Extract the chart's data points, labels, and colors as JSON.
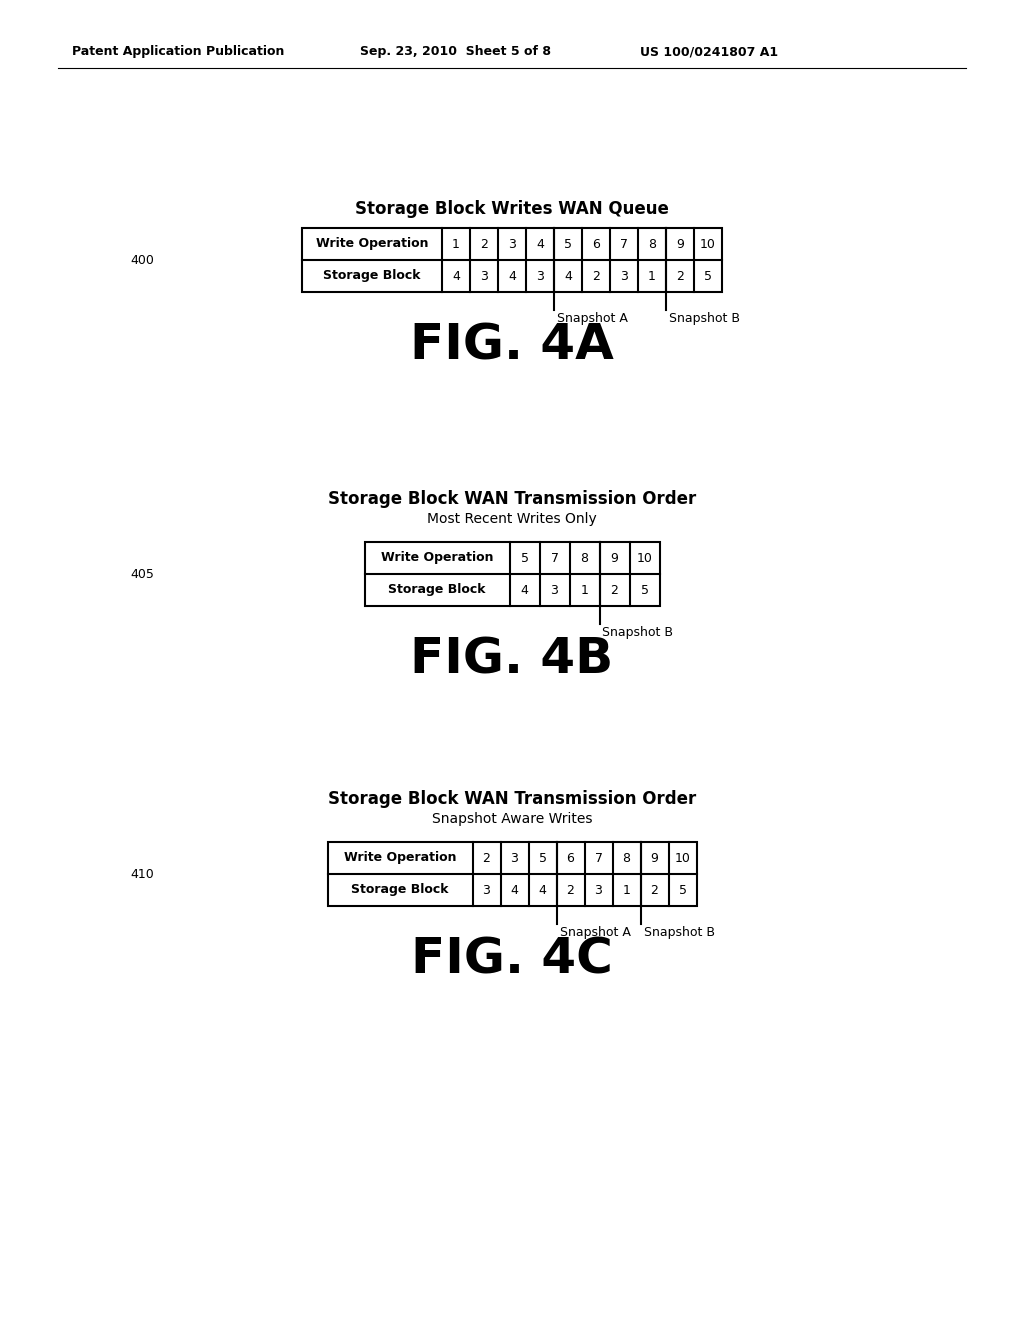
{
  "bg_color": "#ffffff",
  "header_text": "Patent Application Publication",
  "header_date": "Sep. 23, 2010  Sheet 5 of 8",
  "header_patent": "US 100/0241807 A1",
  "fig4a": {
    "title": "Storage Block Writes WAN Queue",
    "label": "400",
    "write_op_row": [
      "Write Operation",
      "1",
      "2",
      "3",
      "4",
      "5",
      "6",
      "7",
      "8",
      "9",
      "10"
    ],
    "storage_block_row": [
      "Storage Block",
      "4",
      "3",
      "4",
      "3",
      "4",
      "2",
      "3",
      "1",
      "2",
      "5"
    ],
    "snapshot_a_col": 4,
    "snapshot_b_col": 8,
    "snapshot_a_label": "Snapshot A",
    "snapshot_b_label": "Snapshot B",
    "fig_label": "FIG. 4A"
  },
  "fig4b": {
    "title": "Storage Block WAN Transmission Order",
    "subtitle": "Most Recent Writes Only",
    "label": "405",
    "write_op_row": [
      "Write Operation",
      "5",
      "7",
      "8",
      "9",
      "10"
    ],
    "storage_block_row": [
      "Storage Block",
      "4",
      "3",
      "1",
      "2",
      "5"
    ],
    "snapshot_b_col": 3,
    "snapshot_b_label": "Snapshot B",
    "fig_label": "FIG. 4B"
  },
  "fig4c": {
    "title": "Storage Block WAN Transmission Order",
    "subtitle": "Snapshot Aware Writes",
    "label": "410",
    "write_op_row": [
      "Write Operation",
      "2",
      "3",
      "5",
      "6",
      "7",
      "8",
      "9",
      "10"
    ],
    "storage_block_row": [
      "Storage Block",
      "3",
      "4",
      "4",
      "2",
      "3",
      "1",
      "2",
      "5"
    ],
    "snapshot_a_col": 3,
    "snapshot_b_col": 6,
    "snapshot_a_label": "Snapshot A",
    "snapshot_b_label": "Snapshot B",
    "fig_label": "FIG. 4C"
  }
}
